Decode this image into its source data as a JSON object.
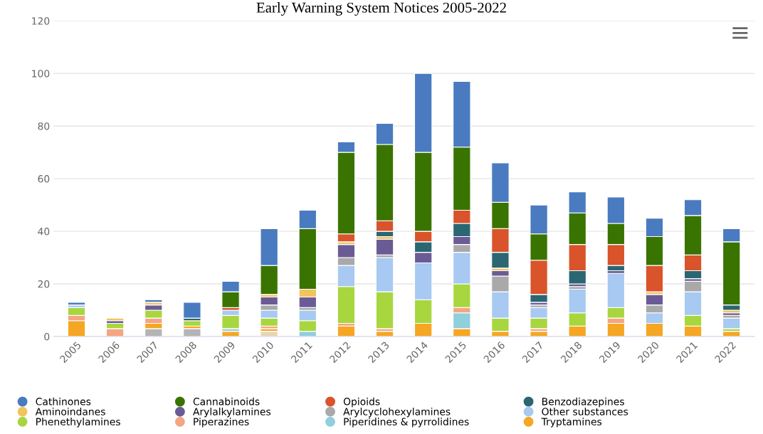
{
  "chart_data": {
    "type": "bar",
    "stacked": true,
    "title": "Early Warning System Notices 2005-2022",
    "categories": [
      "2005",
      "2006",
      "2007",
      "2008",
      "2009",
      "2010",
      "2011",
      "2012",
      "2013",
      "2014",
      "2015",
      "2016",
      "2017",
      "2018",
      "2019",
      "2020",
      "2021",
      "2022"
    ],
    "ylim": [
      0,
      120
    ],
    "yticks": [
      0,
      20,
      40,
      60,
      80,
      100,
      120
    ],
    "grid": "y",
    "legend": "bottom",
    "series": [
      {
        "color": "#b4b4b4",
        "values": [
          0,
          0,
          3,
          3,
          0,
          0,
          0,
          0,
          0,
          0,
          0,
          0,
          0,
          0,
          0,
          0,
          0,
          0
        ]
      },
      {
        "color": "#e8d5b0",
        "values": [
          0,
          0,
          0,
          0,
          0,
          2,
          0,
          0,
          null,
          0,
          0,
          null,
          0,
          0,
          0,
          0,
          0,
          0
        ]
      },
      {
        "name": "Tryptamines",
        "color": "#f5a623",
        "values": [
          6,
          0,
          2,
          1,
          2,
          1,
          0,
          4,
          2,
          5,
          3,
          2,
          2,
          4,
          5,
          5,
          4,
          2
        ]
      },
      {
        "name": "Piperidines & pyrrolidines",
        "color": "#90cfdc",
        "values": [
          0,
          0,
          0,
          0,
          1,
          0,
          2,
          0,
          0,
          0,
          6,
          0,
          0,
          0,
          0,
          0,
          0,
          0
        ]
      },
      {
        "name": "Piperazines",
        "color": "#f4a582",
        "values": [
          2,
          3,
          2,
          0,
          0,
          1,
          0,
          1,
          1,
          0,
          2,
          0,
          1,
          0,
          2,
          0,
          0,
          0
        ]
      },
      {
        "name": "Phenethylamines",
        "color": "#a8d63e",
        "values": [
          3,
          2,
          3,
          2,
          5,
          3,
          4,
          14,
          14,
          9,
          9,
          5,
          4,
          5,
          4,
          0,
          4,
          1
        ]
      },
      {
        "name": "Other substances",
        "color": "#a7c9f2",
        "values": [
          1,
          0,
          0,
          0,
          2,
          3,
          4,
          8,
          13,
          14,
          12,
          10,
          4,
          9,
          13,
          4,
          9,
          4
        ]
      },
      {
        "name": "Arylcyclohexylamines",
        "color": "#a9a9a9",
        "values": [
          0,
          0,
          0,
          0,
          0,
          2,
          1,
          3,
          1,
          0,
          3,
          6,
          1,
          1,
          0,
          3,
          4,
          1
        ]
      },
      {
        "name": "Arylalkylamines",
        "color": "#6b5b95",
        "values": [
          0,
          1,
          2,
          0,
          0,
          3,
          4,
          5,
          6,
          4,
          3,
          2,
          1,
          1,
          1,
          4,
          1,
          1
        ]
      },
      {
        "name": "Aminoindanes",
        "color": "#f2c45e",
        "values": [
          0,
          1,
          1,
          0,
          0,
          1,
          3,
          1,
          1,
          0,
          0,
          1,
          0,
          0,
          0,
          1,
          0,
          1
        ]
      },
      {
        "name": "Benzodiazepines",
        "color": "#2b6673",
        "values": [
          0,
          0,
          0,
          1,
          0,
          0,
          0,
          0,
          2,
          4,
          5,
          6,
          3,
          5,
          2,
          0,
          3,
          2
        ]
      },
      {
        "name": "Opioids",
        "color": "#d9532b",
        "values": [
          0,
          0,
          0,
          0,
          1,
          0,
          0,
          3,
          4,
          4,
          5,
          9,
          13,
          10,
          8,
          10,
          6,
          0
        ]
      },
      {
        "name": "Cannabinoids",
        "color": "#3a7400",
        "values": [
          0,
          0,
          0,
          0,
          6,
          11,
          23,
          31,
          29,
          30,
          24,
          10,
          10,
          12,
          8,
          11,
          15,
          24
        ]
      },
      {
        "name": "Cathinones",
        "color": "#4a7bc0",
        "values": [
          1,
          0,
          1,
          6,
          4,
          14,
          7,
          4,
          8,
          30,
          25,
          15,
          11,
          8,
          10,
          7,
          6,
          5
        ]
      }
    ]
  }
}
